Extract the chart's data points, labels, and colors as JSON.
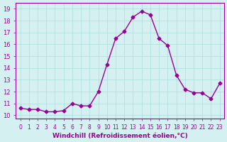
{
  "x": [
    0,
    1,
    2,
    3,
    4,
    5,
    6,
    7,
    8,
    9,
    10,
    11,
    12,
    13,
    14,
    15,
    16,
    17,
    18,
    19,
    20,
    21,
    22,
    23
  ],
  "y": [
    10.6,
    10.5,
    10.5,
    10.3,
    10.3,
    10.4,
    11.0,
    10.8,
    10.8,
    12.0,
    14.3,
    16.5,
    17.1,
    18.3,
    18.8,
    18.5,
    16.5,
    15.9,
    13.4,
    12.2,
    11.9,
    11.9,
    11.4,
    12.7
  ],
  "line_color": "#990099",
  "marker_color": "#990099",
  "bg_color": "#d5f0f0",
  "grid_color": "#aadddd",
  "xlabel": "Windchill (Refroidissement éolien,°C)",
  "ylabel": "",
  "ylim": [
    10,
    19
  ],
  "xlim": [
    0,
    23
  ],
  "yticks": [
    10,
    11,
    12,
    13,
    14,
    15,
    16,
    17,
    18,
    19
  ],
  "xticks": [
    0,
    1,
    2,
    3,
    4,
    5,
    6,
    7,
    8,
    9,
    10,
    11,
    12,
    13,
    14,
    15,
    16,
    17,
    18,
    19,
    20,
    21,
    22,
    23
  ],
  "tick_color": "#990099",
  "label_fontsize": 6.5,
  "tick_fontsize": 6.0
}
